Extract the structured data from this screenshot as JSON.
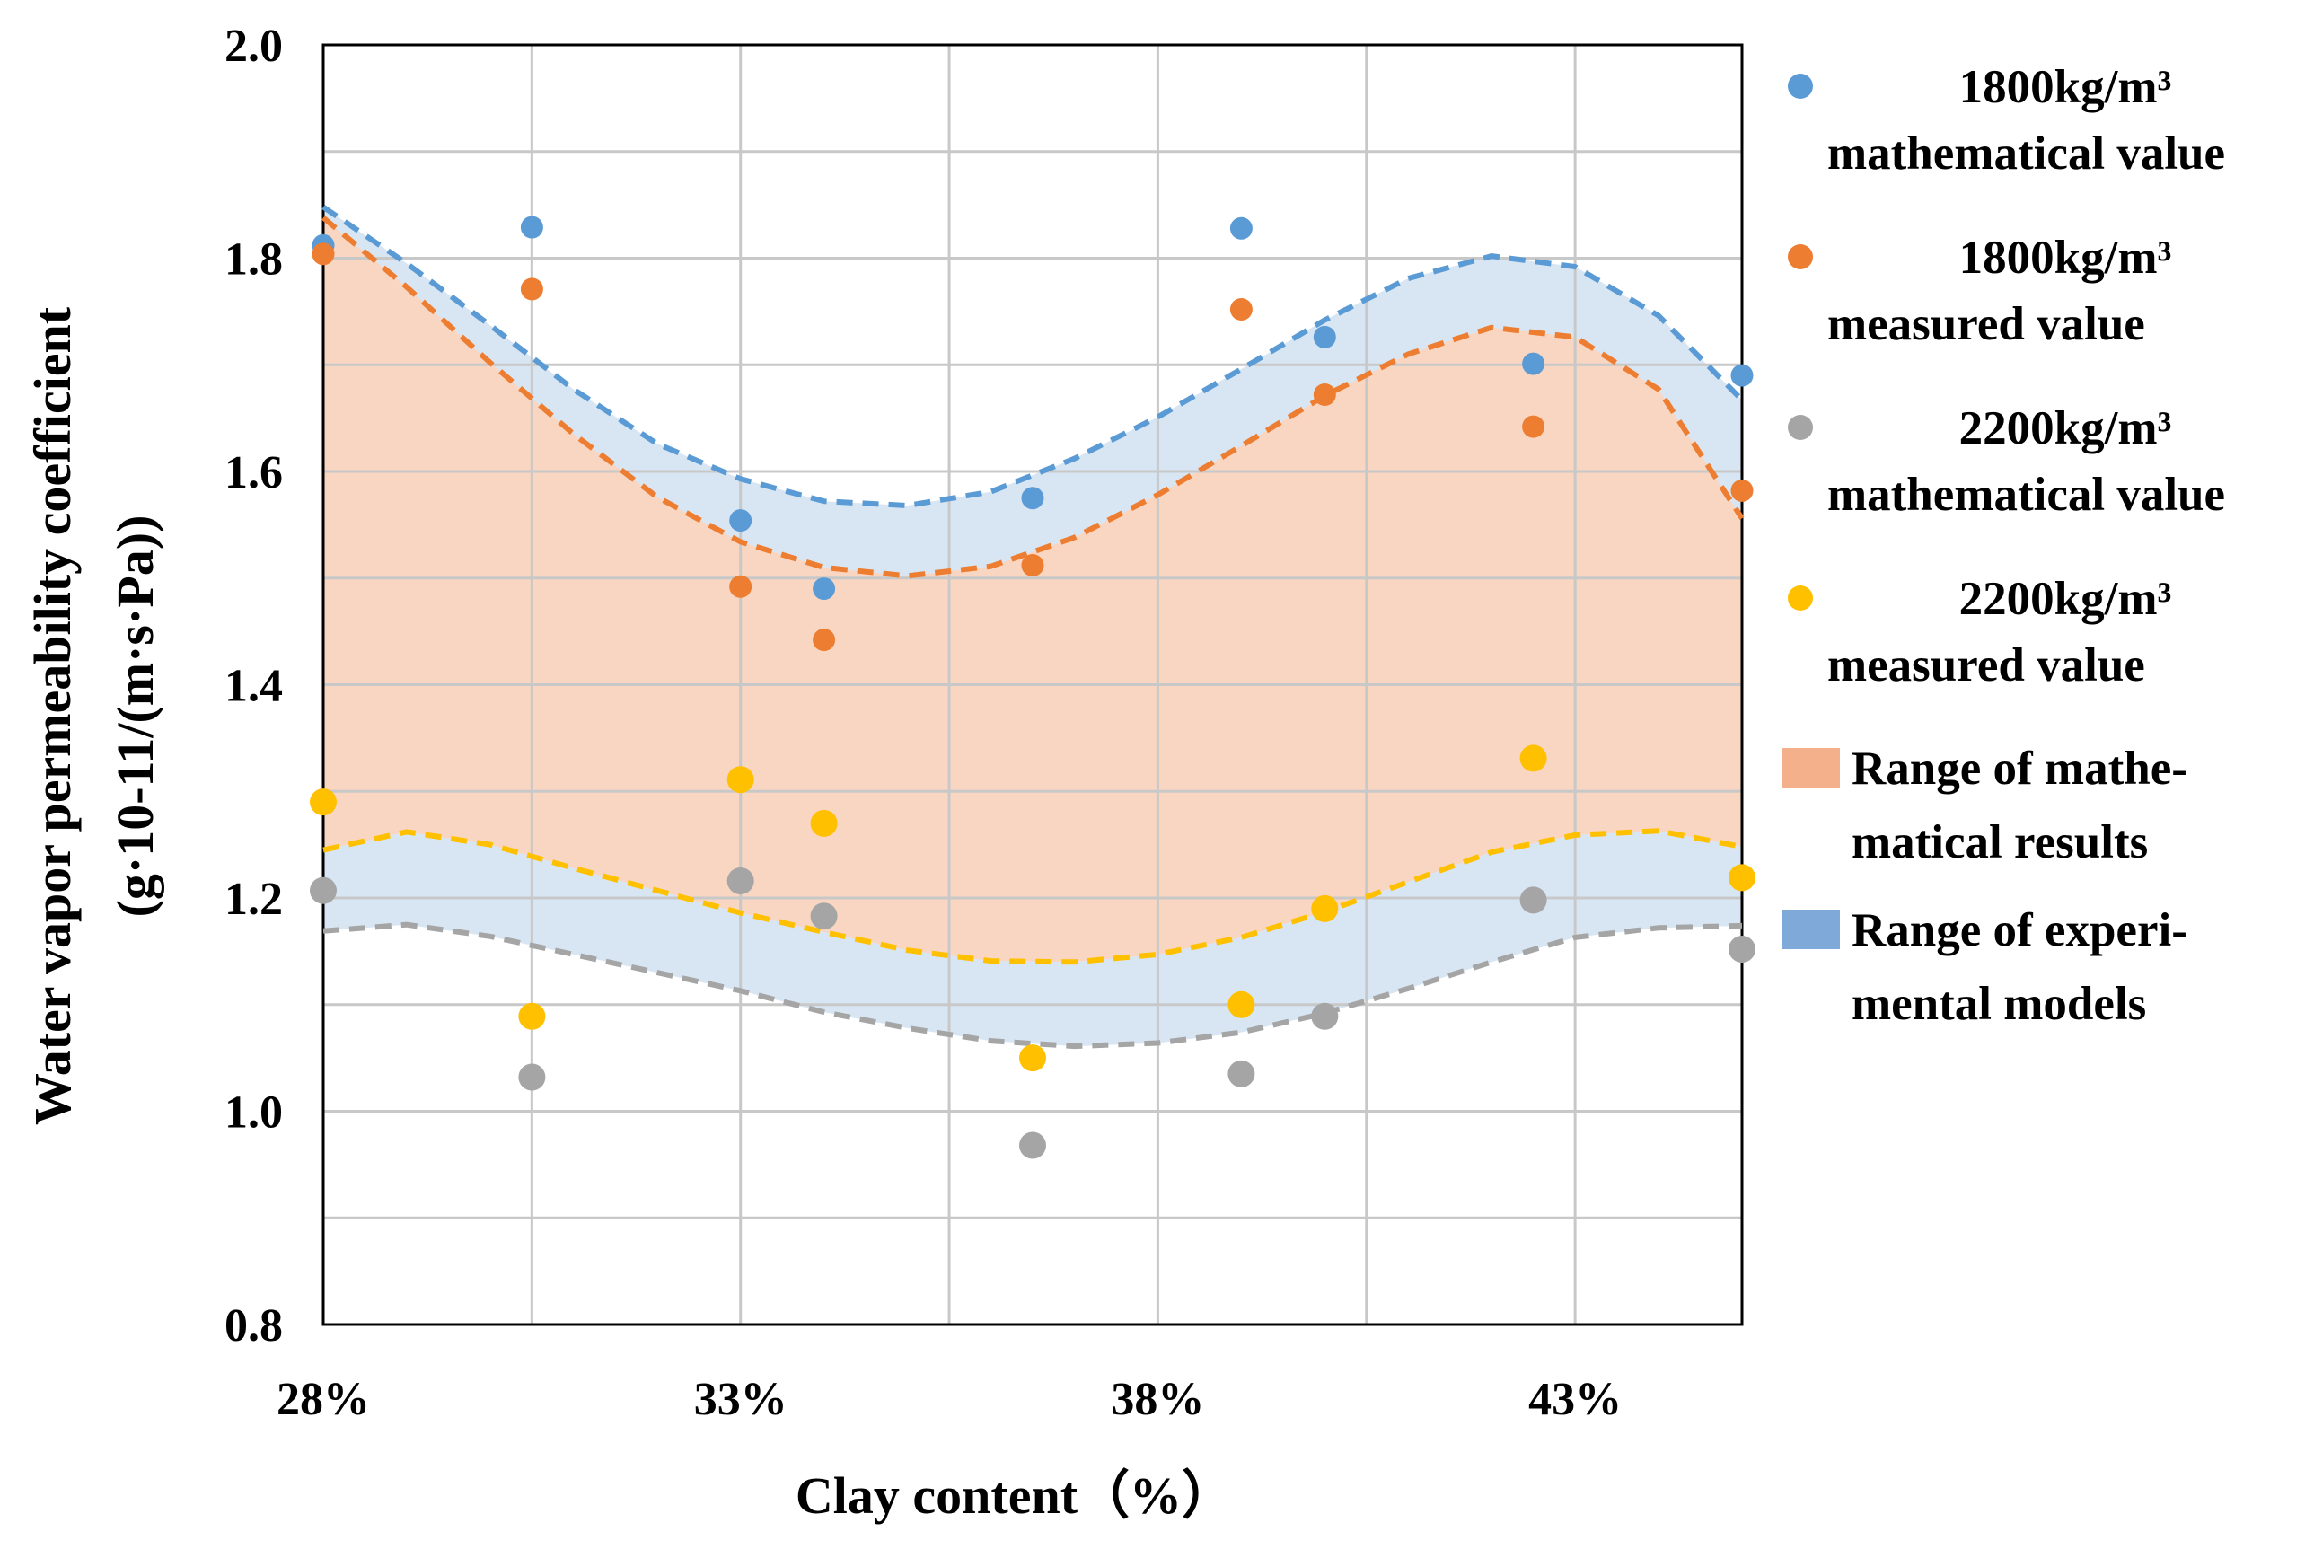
{
  "chart_data": {
    "type": "scatter",
    "title": "",
    "xlabel": "Clay content（%）",
    "ylabel_line1": "Water vapor permeability coefficient",
    "ylabel_line2": "(g·10-11/(m·s·Pa))",
    "xlim": [
      28,
      45.0
    ],
    "ylim": [
      0.8,
      2.0
    ],
    "x_ticks": [
      28,
      33,
      38,
      43
    ],
    "x_tick_labels": [
      "28%",
      "33%",
      "38%",
      "43%"
    ],
    "y_ticks": [
      0.8,
      1.0,
      1.2,
      1.4,
      1.6,
      1.8,
      2.0
    ],
    "y_tick_labels": [
      "0.8",
      "1.0",
      "1.2",
      "1.4",
      "1.6",
      "1.8",
      "2.0"
    ],
    "grid": true,
    "legend_position": "right",
    "series": [
      {
        "name_line1": "1800kg/m³",
        "name_line2": "mathematical value",
        "color": "#5b9bd5",
        "x": [
          28.0,
          30.5,
          33.0,
          34.0,
          36.5,
          39.0,
          40.0,
          42.5,
          45.0
        ],
        "y": [
          1.812,
          1.829,
          1.554,
          1.49,
          1.575,
          1.828,
          1.726,
          1.701,
          1.69
        ]
      },
      {
        "name_line1": "1800kg/m³",
        "name_line2": "measured value",
        "color": "#ed7d31",
        "x": [
          28.0,
          30.5,
          33.0,
          34.0,
          36.5,
          39.0,
          40.0,
          42.5,
          45.0
        ],
        "y": [
          1.804,
          1.771,
          1.492,
          1.442,
          1.512,
          1.752,
          1.672,
          1.642,
          1.582
        ]
      },
      {
        "name_line1": "2200kg/m³",
        "name_line2": "mathematical value",
        "color": "#a5a5a5",
        "x": [
          28.0,
          30.5,
          33.0,
          34.0,
          36.5,
          39.0,
          40.0,
          42.5,
          45.0
        ],
        "y": [
          1.207,
          1.032,
          1.216,
          1.183,
          0.968,
          1.035,
          1.089,
          1.198,
          1.152
        ]
      },
      {
        "name_line1": "2200kg/m³",
        "name_line2": "measured value",
        "color": "#ffc000",
        "x": [
          28.0,
          30.5,
          33.0,
          34.0,
          36.5,
          39.0,
          40.0,
          42.5,
          45.0
        ],
        "y": [
          1.29,
          1.089,
          1.311,
          1.27,
          1.05,
          1.1,
          1.19,
          1.331,
          1.219
        ]
      }
    ],
    "trend_lines": [
      {
        "name": "1800 mathematical trend",
        "color": "#5b9bd5",
        "x": [
          28.0,
          29.0,
          30.0,
          31.0,
          32.0,
          33.0,
          34.0,
          35.0,
          36.0,
          37.0,
          38.0,
          39.0,
          40.0,
          41.0,
          42.0,
          43.0,
          44.0,
          45.0
        ],
        "y": [
          1.848,
          1.795,
          1.737,
          1.677,
          1.626,
          1.593,
          1.572,
          1.568,
          1.581,
          1.612,
          1.651,
          1.696,
          1.742,
          1.781,
          1.802,
          1.792,
          1.746,
          1.667
        ]
      },
      {
        "name": "1800 measured trend",
        "color": "#ed7d31",
        "x": [
          28.0,
          29.0,
          30.0,
          31.0,
          32.0,
          33.0,
          34.0,
          35.0,
          36.0,
          37.0,
          38.0,
          39.0,
          40.0,
          41.0,
          42.0,
          43.0,
          44.0,
          45.0
        ],
        "y": [
          1.838,
          1.773,
          1.702,
          1.635,
          1.576,
          1.534,
          1.51,
          1.502,
          1.511,
          1.538,
          1.578,
          1.624,
          1.671,
          1.71,
          1.735,
          1.726,
          1.677,
          1.556
        ]
      },
      {
        "name": "2200 measured trend",
        "color": "#ffc000",
        "x": [
          28.0,
          29.0,
          30.0,
          31.0,
          32.0,
          33.0,
          34.0,
          35.0,
          36.0,
          37.0,
          38.0,
          39.0,
          40.0,
          41.0,
          42.0,
          43.0,
          44.0,
          45.0
        ],
        "y": [
          1.245,
          1.262,
          1.25,
          1.228,
          1.207,
          1.186,
          1.168,
          1.151,
          1.141,
          1.14,
          1.147,
          1.163,
          1.187,
          1.215,
          1.243,
          1.259,
          1.263,
          1.248
        ]
      },
      {
        "name": "2200 mathematical trend",
        "color": "#a5a5a5",
        "x": [
          28.0,
          29.0,
          30.0,
          31.0,
          32.0,
          33.0,
          34.0,
          35.0,
          36.0,
          37.0,
          38.0,
          39.0,
          40.0,
          41.0,
          42.0,
          43.0,
          44.0,
          45.0
        ],
        "y": [
          1.169,
          1.175,
          1.164,
          1.147,
          1.13,
          1.113,
          1.093,
          1.078,
          1.066,
          1.061,
          1.064,
          1.074,
          1.092,
          1.115,
          1.14,
          1.163,
          1.172,
          1.174
        ]
      }
    ],
    "ranges": [
      {
        "name_line1": "Range of mathe-",
        "name_line2": "matical results",
        "color": "#f4b08a",
        "fill": "rgba(241,164,119,0.45)",
        "upper_trend": 1,
        "lower_trend": 2
      },
      {
        "name_line1": "Range of experi-",
        "name_line2": "mental models",
        "color": "#7ea9d8",
        "fill": "rgba(152,188,224,0.38)",
        "bands": [
          [
            0,
            1
          ],
          [
            2,
            3
          ]
        ]
      }
    ]
  }
}
